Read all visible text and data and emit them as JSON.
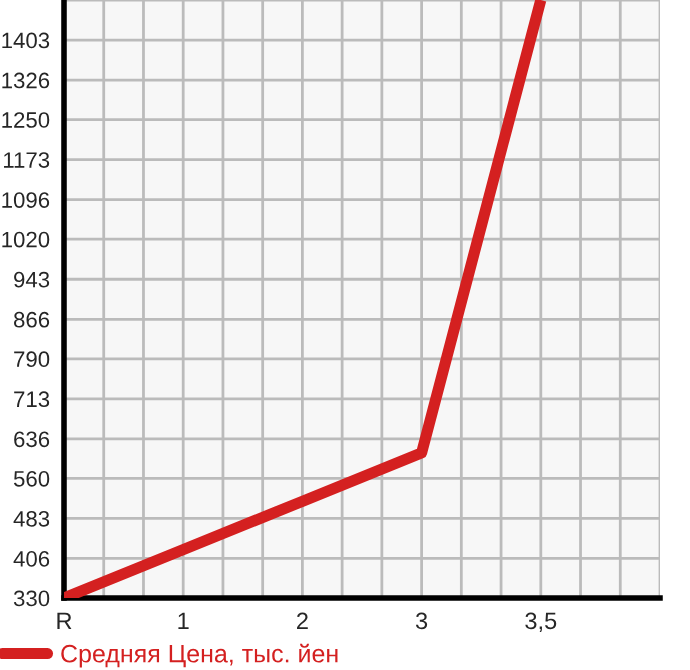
{
  "chart_data": {
    "type": "line",
    "categories": [
      "R",
      "1",
      "2",
      "3",
      "3,5",
      null
    ],
    "series": [
      {
        "name": "Средняя Цена, тыс. йен",
        "color": "#d42020",
        "values": [
          330,
          423,
          516,
          609,
          1480,
          null
        ]
      }
    ],
    "ylim": [
      330,
      1480
    ],
    "yticks": [
      330,
      406,
      483,
      560,
      636,
      713,
      790,
      866,
      943,
      1020,
      1096,
      1173,
      1250,
      1326,
      1403
    ],
    "grid": true,
    "legend": "bottom",
    "marker": "none",
    "line_style": "solid"
  }
}
